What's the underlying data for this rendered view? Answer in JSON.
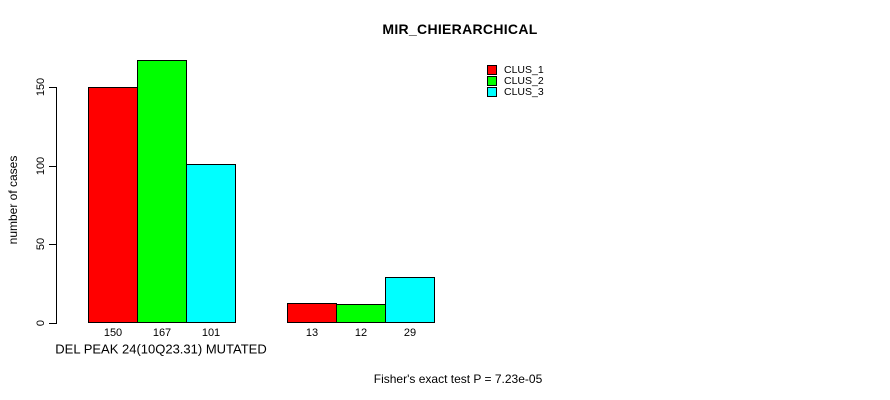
{
  "figure": {
    "background_color": "#ffffff",
    "axis_color": "#000000"
  },
  "chart_data": {
    "type": "bar",
    "title": "MIR_CHIERARCHICAL",
    "xlabel": "DEL PEAK 24(10Q23.31) MUTATED",
    "ylabel": "number of cases",
    "annotation": "Fisher's exact test P = 7.23e-05",
    "grid": false,
    "legend_position": "top-right",
    "ylim": [
      0,
      167
    ],
    "yticks": [
      0,
      50,
      100,
      150
    ],
    "ytick_labels": [
      "0",
      "50",
      "100",
      "150"
    ],
    "groups": 2,
    "series": [
      {
        "name": "CLUS_1",
        "color": "#ff0000",
        "values": [
          150,
          13
        ]
      },
      {
        "name": "CLUS_2",
        "color": "#00ff00",
        "values": [
          167,
          12
        ]
      },
      {
        "name": "CLUS_3",
        "color": "#00ffff",
        "values": [
          101,
          29
        ]
      }
    ],
    "bar_value_labels": [
      [
        "150",
        "167",
        "101"
      ],
      [
        "13",
        "12",
        "29"
      ]
    ]
  }
}
